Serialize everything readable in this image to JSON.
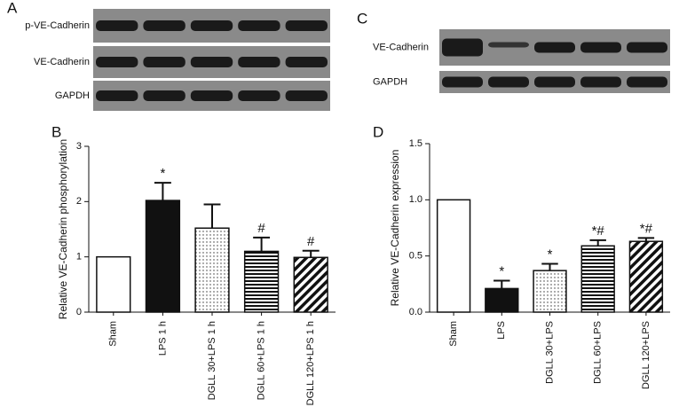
{
  "blots": [
    {
      "panel": "A",
      "rows": [
        "p-VE-Cadherin",
        "VE-Cadherin",
        "GAPDH"
      ]
    },
    {
      "panel": "C",
      "rows": [
        "VE-Cadherin",
        "GAPDH"
      ]
    }
  ],
  "chart_data": [
    {
      "type": "bar",
      "panel": "B",
      "ylabel": "Relative VE-Cadherin phosphorylation",
      "categories": [
        "Sham",
        "LPS 1 h",
        "DGLL 30+LPS 1 h",
        "DGLL 60+LPS 1 h",
        "DGLL 120+LPS 1 h"
      ],
      "values": [
        1,
        2.02,
        1.52,
        1.1,
        0.99
      ],
      "errors": [
        0,
        0.32,
        0.43,
        0.25,
        0.12
      ],
      "markers": [
        null,
        "*",
        null,
        "#",
        "#"
      ],
      "fills": [
        "white",
        "black",
        "dots",
        "hlines",
        "diagonal"
      ],
      "ylim": [
        0,
        3
      ],
      "yticks": [
        0,
        1,
        2,
        3
      ]
    },
    {
      "type": "bar",
      "panel": "D",
      "ylabel": "Relative VE-Cadherin expression",
      "categories": [
        "Sham",
        "LPS",
        "DGLL 30+LPS",
        "DGLL 60+LPS",
        "DGLL 120+LPS"
      ],
      "values": [
        1,
        0.21,
        0.37,
        0.59,
        0.63
      ],
      "errors": [
        0,
        0.07,
        0.06,
        0.05,
        0.03
      ],
      "markers": [
        null,
        "*",
        "*",
        "*#",
        "*#"
      ],
      "fills": [
        "white",
        "black",
        "dots",
        "hlines",
        "diagonal"
      ],
      "ylim": [
        0,
        1.5
      ],
      "yticks": [
        {
          "value": 0,
          "label": "0.0"
        },
        0.5,
        {
          "value": 1,
          "label": "1.0"
        },
        1.5
      ]
    }
  ]
}
